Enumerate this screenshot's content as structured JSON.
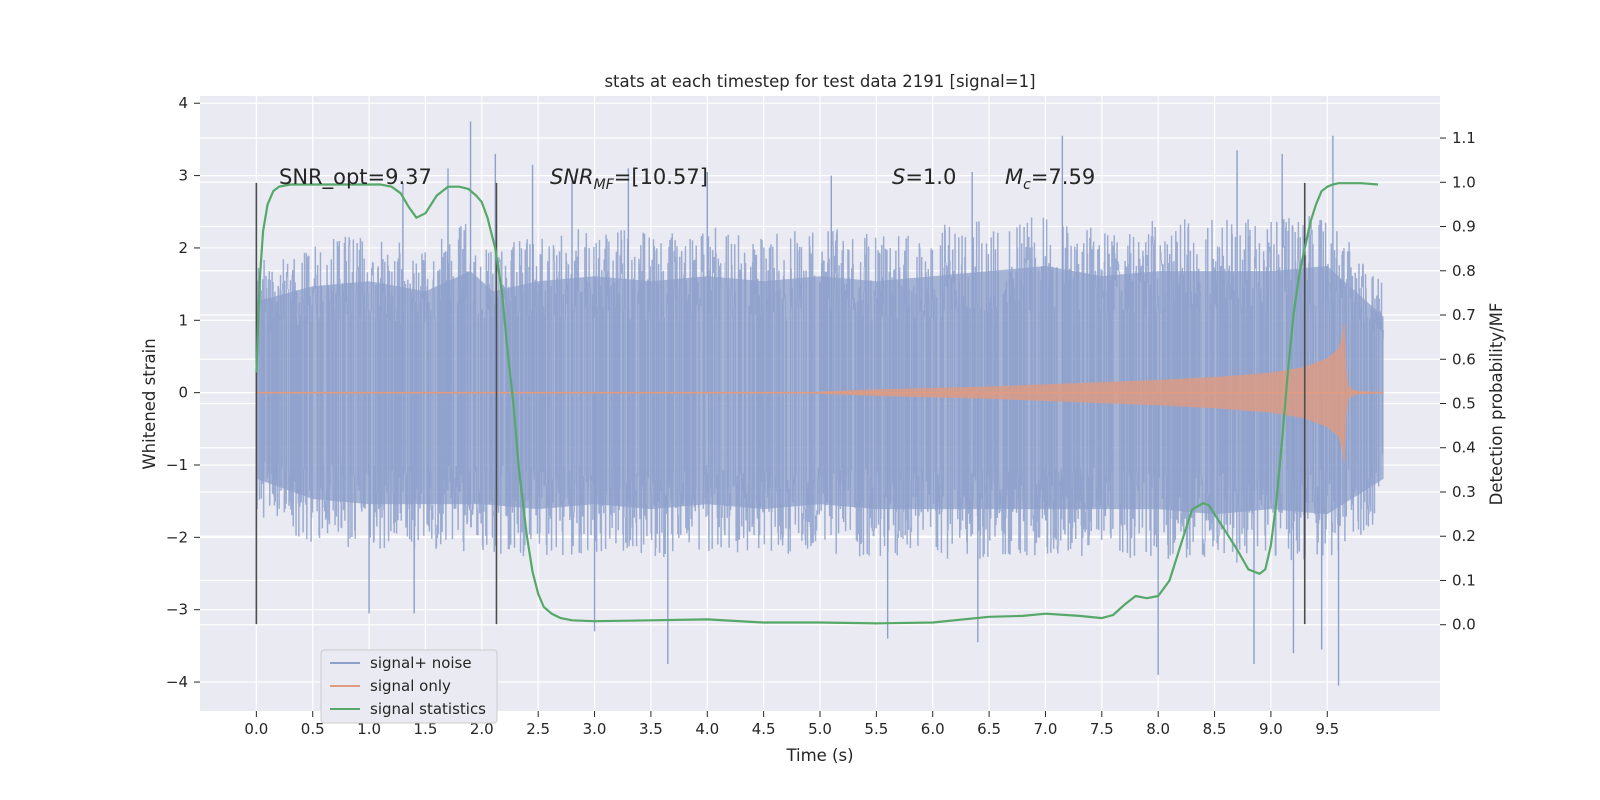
{
  "chart_data": {
    "type": "line",
    "title": "stats at each timestep for test data 2191 [signal=1]",
    "xlabel": "Time (s)",
    "ylabel": "Whitened strain",
    "y2label": "Detection probability/MF",
    "xlim": [
      -0.5,
      10.5
    ],
    "ylim": [
      -4.4,
      4.1
    ],
    "y2lim": [
      -0.195,
      1.195
    ],
    "xticks": [
      0.0,
      0.5,
      1.0,
      1.5,
      2.0,
      2.5,
      3.0,
      3.5,
      4.0,
      4.5,
      5.0,
      5.5,
      6.0,
      6.5,
      7.0,
      7.5,
      8.0,
      8.5,
      9.0,
      9.5
    ],
    "xtick_labels": [
      "0.0",
      "0.5",
      "1.0",
      "1.5",
      "2.0",
      "2.5",
      "3.0",
      "3.5",
      "4.0",
      "4.5",
      "5.0",
      "5.5",
      "6.0",
      "6.5",
      "7.0",
      "7.5",
      "8.0",
      "8.5",
      "9.0",
      "9.5"
    ],
    "yticks": [
      -4,
      -3,
      -2,
      -1,
      0,
      1,
      2,
      3,
      4
    ],
    "ytick_labels": [
      "−4",
      "−3",
      "−2",
      "−1",
      "0",
      "1",
      "2",
      "3",
      "4"
    ],
    "y2ticks": [
      0.0,
      0.1,
      0.2,
      0.3,
      0.4,
      0.5,
      0.6,
      0.7,
      0.8,
      0.9,
      1.0,
      1.1
    ],
    "y2tick_labels": [
      "0.0",
      "0.1",
      "0.2",
      "0.3",
      "0.4",
      "0.5",
      "0.6",
      "0.7",
      "0.8",
      "0.9",
      "1.0",
      "1.1"
    ],
    "grid": true,
    "legend": {
      "placement": "lower-left",
      "entries": [
        "signal+ noise",
        "signal only",
        "signal statistics"
      ]
    },
    "colors": {
      "signal_noise": "#8da0cb",
      "signal_only": "#e09b80",
      "statistics": "#55a868",
      "markers": "#4d4d4d",
      "background": "#eaeaf2",
      "grid": "#ffffff"
    },
    "annotations": [
      {
        "id": "snr-opt",
        "text": "SNR_opt=9.37",
        "x": 0.2,
        "y": 2.93
      },
      {
        "id": "snr-mf",
        "text_main": "SNR",
        "text_sub": "MF",
        "text_rest": "=[10.57]",
        "x": 2.6,
        "y": 2.93
      },
      {
        "id": "s",
        "text_main": "S",
        "text_rest": "=1.0",
        "x": 5.6,
        "y": 2.93
      },
      {
        "id": "mc",
        "text_main": "M",
        "text_sub": "c",
        "text_rest": "=7.59",
        "x": 6.6,
        "y": 2.93
      }
    ],
    "vertical_markers": {
      "x": [
        0.0,
        2.13,
        9.3
      ],
      "ymin": -3.2,
      "ymax": 2.9
    },
    "series": [
      {
        "name": "signal+ noise",
        "axis": "left",
        "x_range": [
          0.0,
          10.0
        ],
        "envelope_hi": [
          [
            0.0,
            1.8
          ],
          [
            0.5,
            2.1
          ],
          [
            1.0,
            2.2
          ],
          [
            1.5,
            2.0
          ],
          [
            1.9,
            2.4
          ],
          [
            2.1,
            2.0
          ],
          [
            2.5,
            2.2
          ],
          [
            3.0,
            2.3
          ],
          [
            3.5,
            2.2
          ],
          [
            4.0,
            2.3
          ],
          [
            4.5,
            2.2
          ],
          [
            5.0,
            2.3
          ],
          [
            5.5,
            2.2
          ],
          [
            6.0,
            2.3
          ],
          [
            6.5,
            2.4
          ],
          [
            7.0,
            2.5
          ],
          [
            7.5,
            2.3
          ],
          [
            8.0,
            2.4
          ],
          [
            8.5,
            2.4
          ],
          [
            9.0,
            2.4
          ],
          [
            9.5,
            2.5
          ],
          [
            10.0,
            1.5
          ]
        ],
        "envelope_lo": [
          [
            0.0,
            -1.7
          ],
          [
            0.5,
            -2.1
          ],
          [
            1.0,
            -2.2
          ],
          [
            1.5,
            -2.2
          ],
          [
            2.0,
            -2.2
          ],
          [
            2.5,
            -2.3
          ],
          [
            3.0,
            -2.2
          ],
          [
            3.5,
            -2.3
          ],
          [
            4.0,
            -2.2
          ],
          [
            4.5,
            -2.3
          ],
          [
            5.0,
            -2.2
          ],
          [
            5.5,
            -2.3
          ],
          [
            6.0,
            -2.3
          ],
          [
            6.5,
            -2.3
          ],
          [
            7.0,
            -2.3
          ],
          [
            7.5,
            -2.3
          ],
          [
            8.0,
            -2.3
          ],
          [
            8.5,
            -2.4
          ],
          [
            9.0,
            -2.3
          ],
          [
            9.5,
            -2.4
          ],
          [
            10.0,
            -1.7
          ]
        ],
        "peaks": [
          [
            1.9,
            3.75
          ],
          [
            2.12,
            3.3
          ],
          [
            1.3,
            2.9
          ],
          [
            1.7,
            3.1
          ],
          [
            2.45,
            3.15
          ],
          [
            3.3,
            3.1
          ],
          [
            4.0,
            3.05
          ],
          [
            5.1,
            3.0
          ],
          [
            6.35,
            3.05
          ],
          [
            7.15,
            3.55
          ],
          [
            8.7,
            3.35
          ],
          [
            9.1,
            3.3
          ],
          [
            9.55,
            3.55
          ],
          [
            2.8,
            3.0
          ]
        ],
        "troughs": [
          [
            1.0,
            -3.05
          ],
          [
            1.4,
            -3.05
          ],
          [
            3.0,
            -3.3
          ],
          [
            3.65,
            -3.75
          ],
          [
            5.6,
            -3.4
          ],
          [
            6.4,
            -3.45
          ],
          [
            8.0,
            -3.9
          ],
          [
            8.85,
            -3.75
          ],
          [
            9.45,
            -3.55
          ],
          [
            9.6,
            -4.05
          ],
          [
            9.2,
            -3.6
          ]
        ]
      },
      {
        "name": "signal only",
        "axis": "left",
        "chirp_start": 5.0,
        "merger_time": 9.65,
        "x_range": [
          0.0,
          10.0
        ],
        "amplitude": [
          [
            5.0,
            0.01
          ],
          [
            5.5,
            0.04
          ],
          [
            6.0,
            0.06
          ],
          [
            6.5,
            0.08
          ],
          [
            7.0,
            0.11
          ],
          [
            7.5,
            0.14
          ],
          [
            8.0,
            0.17
          ],
          [
            8.5,
            0.21
          ],
          [
            9.0,
            0.27
          ],
          [
            9.3,
            0.35
          ],
          [
            9.5,
            0.47
          ],
          [
            9.6,
            0.6
          ],
          [
            9.64,
            0.8
          ],
          [
            9.655,
            1.05
          ],
          [
            9.67,
            0.1
          ],
          [
            9.75,
            0.02
          ],
          [
            10.0,
            0.0
          ]
        ]
      },
      {
        "name": "signal statistics",
        "axis": "right",
        "x": [
          0.0,
          0.03,
          0.06,
          0.1,
          0.15,
          0.2,
          0.3,
          0.5,
          0.8,
          1.0,
          1.1,
          1.2,
          1.28,
          1.35,
          1.42,
          1.5,
          1.6,
          1.7,
          1.8,
          1.88,
          1.95,
          2.0,
          2.05,
          2.12,
          2.18,
          2.22,
          2.28,
          2.33,
          2.4,
          2.45,
          2.5,
          2.55,
          2.62,
          2.7,
          2.8,
          3.0,
          3.5,
          4.0,
          4.5,
          5.0,
          5.5,
          6.0,
          6.5,
          6.8,
          7.0,
          7.3,
          7.5,
          7.6,
          7.7,
          7.8,
          7.9,
          8.0,
          8.1,
          8.2,
          8.3,
          8.4,
          8.45,
          8.5,
          8.6,
          8.7,
          8.8,
          8.9,
          8.95,
          9.0,
          9.05,
          9.1,
          9.15,
          9.2,
          9.25,
          9.3,
          9.35,
          9.4,
          9.45,
          9.5,
          9.55,
          9.6,
          9.7,
          9.8,
          9.95
        ],
        "y": [
          0.57,
          0.78,
          0.89,
          0.95,
          0.98,
          0.99,
          0.995,
          0.995,
          0.995,
          0.995,
          0.995,
          0.99,
          0.975,
          0.945,
          0.92,
          0.93,
          0.97,
          0.99,
          0.99,
          0.985,
          0.97,
          0.955,
          0.92,
          0.85,
          0.75,
          0.64,
          0.5,
          0.35,
          0.2,
          0.12,
          0.07,
          0.04,
          0.025,
          0.015,
          0.01,
          0.008,
          0.01,
          0.012,
          0.005,
          0.005,
          0.003,
          0.005,
          0.018,
          0.02,
          0.025,
          0.02,
          0.015,
          0.022,
          0.045,
          0.065,
          0.06,
          0.065,
          0.1,
          0.18,
          0.26,
          0.275,
          0.27,
          0.25,
          0.21,
          0.17,
          0.125,
          0.115,
          0.125,
          0.18,
          0.28,
          0.42,
          0.57,
          0.7,
          0.79,
          0.85,
          0.91,
          0.95,
          0.98,
          0.99,
          0.995,
          0.998,
          0.998,
          0.998,
          0.995
        ]
      }
    ]
  }
}
